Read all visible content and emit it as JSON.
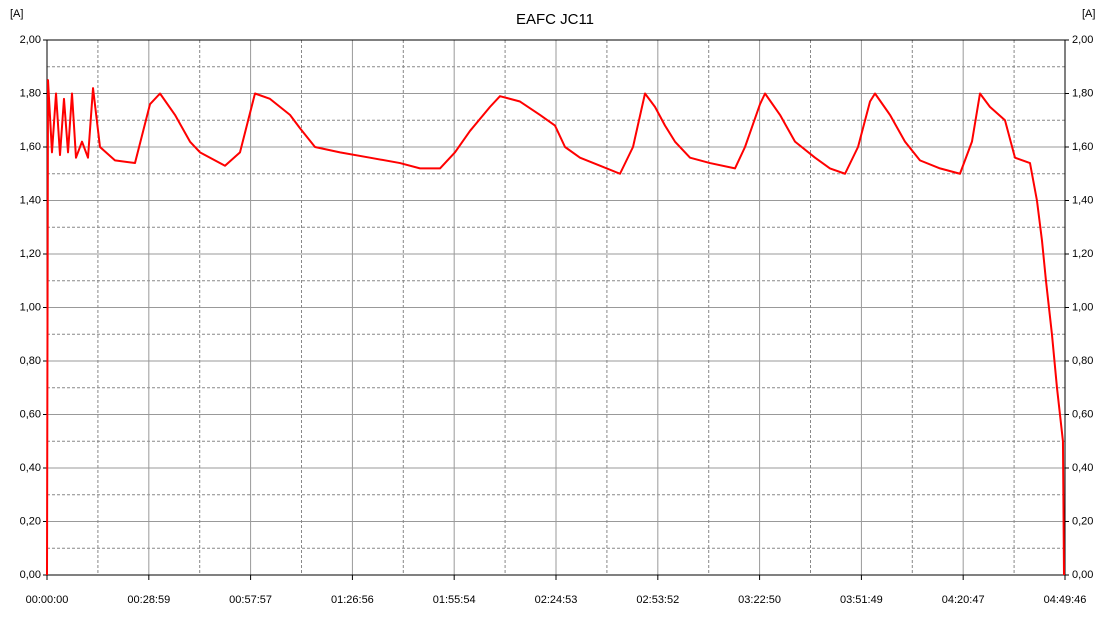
{
  "chart_data": {
    "type": "line",
    "title": "EAFC JC11",
    "y_label": "[A]",
    "color": "#ff0000",
    "grid": true,
    "xlim": [
      0,
      17386
    ],
    "ylim": [
      0,
      2
    ],
    "xticks": [
      {
        "value": 0,
        "label": "00:00:00"
      },
      {
        "value": 1739,
        "label": "00:28:59"
      },
      {
        "value": 3477,
        "label": "00:57:57"
      },
      {
        "value": 5216,
        "label": "01:26:56"
      },
      {
        "value": 6954,
        "label": "01:55:54"
      },
      {
        "value": 8693,
        "label": "02:24:53"
      },
      {
        "value": 10432,
        "label": "02:53:52"
      },
      {
        "value": 12170,
        "label": "03:22:50"
      },
      {
        "value": 13909,
        "label": "03:51:49"
      },
      {
        "value": 15647,
        "label": "04:20:47"
      },
      {
        "value": 17386,
        "label": "04:49:46"
      }
    ],
    "yticks": [
      {
        "value": 0,
        "label": "0,00"
      },
      {
        "value": 0.2,
        "label": "0,20"
      },
      {
        "value": 0.4,
        "label": "0,40"
      },
      {
        "value": 0.6,
        "label": "0,60"
      },
      {
        "value": 0.8,
        "label": "0,80"
      },
      {
        "value": 1,
        "label": "1,00"
      },
      {
        "value": 1.2,
        "label": "1,20"
      },
      {
        "value": 1.4,
        "label": "1,40"
      },
      {
        "value": 1.6,
        "label": "1,60"
      },
      {
        "value": 1.8,
        "label": "1,80"
      },
      {
        "value": 2,
        "label": "2,00"
      }
    ],
    "x": [
      0,
      17,
      85,
      154,
      222,
      290,
      359,
      427,
      495,
      598,
      700,
      786,
      905,
      1161,
      1503,
      1759,
      1930,
      2186,
      2442,
      2613,
      3040,
      3296,
      3552,
      3808,
      4150,
      4321,
      4577,
      5004,
      5516,
      6029,
      6370,
      6712,
      6968,
      7224,
      7566,
      7736,
      8078,
      8420,
      8676,
      8847,
      9103,
      9444,
      9786,
      10008,
      10213,
      10384,
      10555,
      10725,
      10982,
      11323,
      11750,
      11921,
      12177,
      12263,
      12519,
      12775,
      13117,
      13372,
      13629,
      13851,
      14056,
      14141,
      14397,
      14653,
      14909,
      15251,
      15592,
      15797,
      15934,
      16104,
      16361,
      16532,
      16788,
      16907,
      16993,
      17061,
      17163,
      17249,
      17351,
      17369
    ],
    "values": [
      0,
      1.85,
      1.58,
      1.8,
      1.57,
      1.78,
      1.58,
      1.8,
      1.56,
      1.62,
      1.56,
      1.82,
      1.6,
      1.55,
      1.54,
      1.76,
      1.8,
      1.72,
      1.62,
      1.58,
      1.53,
      1.58,
      1.8,
      1.78,
      1.72,
      1.67,
      1.6,
      1.58,
      1.56,
      1.54,
      1.52,
      1.52,
      1.58,
      1.66,
      1.75,
      1.79,
      1.77,
      1.72,
      1.68,
      1.6,
      1.56,
      1.53,
      1.5,
      1.6,
      1.8,
      1.75,
      1.68,
      1.62,
      1.56,
      1.54,
      1.52,
      1.6,
      1.76,
      1.8,
      1.72,
      1.62,
      1.56,
      1.52,
      1.5,
      1.6,
      1.77,
      1.8,
      1.72,
      1.62,
      1.55,
      1.52,
      1.5,
      1.62,
      1.8,
      1.75,
      1.7,
      1.56,
      1.54,
      1.4,
      1.25,
      1.1,
      0.9,
      0.7,
      0.5,
      0
    ]
  }
}
